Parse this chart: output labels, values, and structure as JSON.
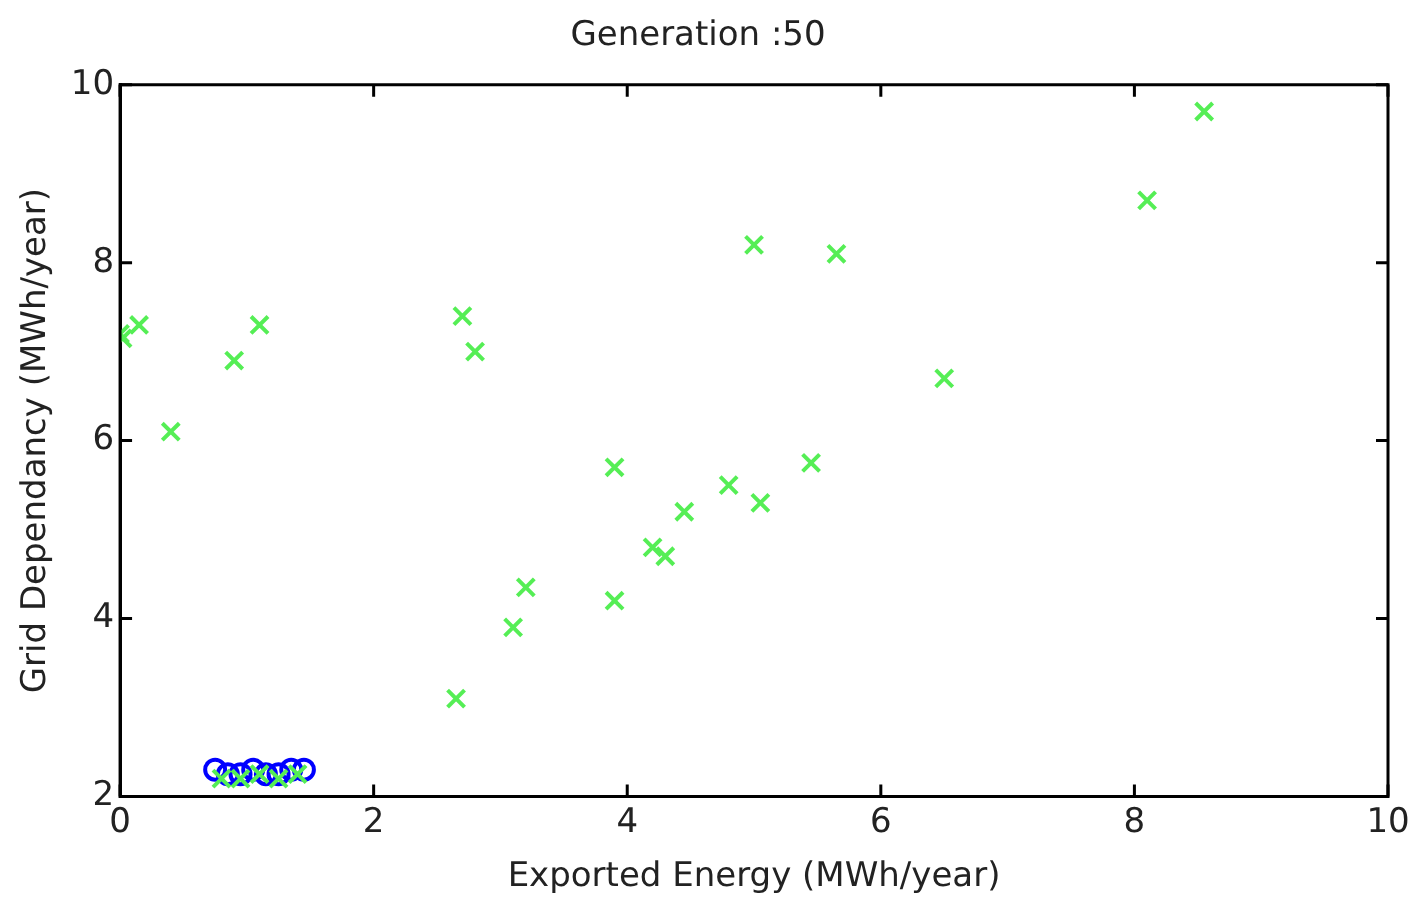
{
  "chart_data": {
    "type": "scatter",
    "title": "Generation :50",
    "xlabel": "Exported Energy (MWh/year)",
    "ylabel": "Grid Dependancy (MWh/year)",
    "xlim": [
      0,
      10
    ],
    "xticks": [
      0,
      2,
      4,
      6,
      8,
      10
    ],
    "ylim": [
      2,
      10
    ],
    "yticks": [
      2,
      4,
      6,
      8,
      10
    ],
    "grid": false,
    "legend": false,
    "series": [
      {
        "color": "#0000ff",
        "marker": "circle",
        "x": [
          0.75,
          0.85,
          0.95,
          1.05,
          1.15,
          1.25,
          1.35,
          1.45
        ],
        "values": [
          2.3,
          2.25,
          2.25,
          2.3,
          2.25,
          2.25,
          2.3,
          2.3
        ]
      },
      {
        "color": "#55ee55",
        "marker": "cross",
        "x": [
          0,
          0.02,
          0.15,
          0.4,
          0.9,
          1.1,
          2.7,
          2.8,
          2.65,
          3.1,
          3.2,
          3.9,
          3.9,
          4.2,
          4.3,
          4.45,
          4.8,
          5.05,
          5.45,
          5.0,
          5.65,
          6.5,
          8.1,
          8.55,
          0.8,
          0.95,
          1.1,
          1.25,
          1.4
        ],
        "values": [
          7.2,
          7.15,
          7.3,
          6.1,
          6.9,
          7.3,
          7.4,
          7.0,
          3.1,
          3.9,
          4.35,
          5.7,
          4.2,
          4.8,
          4.7,
          5.2,
          5.5,
          5.3,
          5.75,
          8.2,
          8.1,
          6.7,
          8.7,
          9.7,
          2.2,
          2.2,
          2.25,
          2.2,
          2.25
        ]
      }
    ]
  }
}
